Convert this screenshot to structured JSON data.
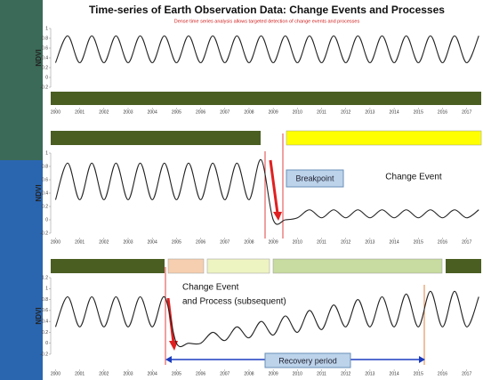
{
  "header": {
    "title": "Time-series of Earth Observation Data: Change Events and Processes",
    "subtitle": "Dense time series analysis allows targeted detection of change events and processes"
  },
  "annotations": {
    "breakpoint": "Breakpoint",
    "change_event": "Change Event",
    "change_process_1": "Change Event",
    "change_process_2": "and Process (subsequent)",
    "recovery": "Recovery period"
  },
  "chart_data": [
    {
      "type": "line",
      "y_label": "NDVI",
      "color": "#222222",
      "x": [
        2000,
        2000.5,
        2001,
        2001.5,
        2002,
        2002.5,
        2003,
        2003.5,
        2004,
        2004.5,
        2005,
        2005.5,
        2006,
        2006.5,
        2007,
        2007.5,
        2008,
        2008.5,
        2009,
        2009.5,
        2010,
        2010.5,
        2011,
        2011.5,
        2012,
        2012.5,
        2013,
        2013.5,
        2014,
        2014.5,
        2015,
        2015.5,
        2016,
        2016.5,
        2017,
        2017.5
      ],
      "values": [
        0.3,
        0.85,
        0.3,
        0.85,
        0.3,
        0.85,
        0.3,
        0.85,
        0.3,
        0.85,
        0.3,
        0.85,
        0.3,
        0.85,
        0.3,
        0.85,
        0.3,
        0.85,
        0.3,
        0.85,
        0.3,
        0.85,
        0.3,
        0.85,
        0.3,
        0.85,
        0.3,
        0.85,
        0.3,
        0.85,
        0.3,
        0.85,
        0.3,
        0.85,
        0.3,
        0.85
      ],
      "xlim": [
        1999.8,
        2017.6
      ],
      "ylim": [
        -0.2,
        1
      ],
      "xticks": [
        2000,
        2001,
        2002,
        2003,
        2004,
        2005,
        2006,
        2007,
        2008,
        2009,
        2010,
        2011,
        2012,
        2013,
        2014,
        2015,
        2016,
        2017
      ],
      "yticks": [
        -0.2,
        0,
        0.2,
        0.4,
        0.6,
        0.8,
        1
      ]
    },
    {
      "type": "line",
      "y_label": "NDVI",
      "color": "#222222",
      "x": [
        2000,
        2000.5,
        2001,
        2001.5,
        2002,
        2002.5,
        2003,
        2003.5,
        2004,
        2004.5,
        2005,
        2005.5,
        2006,
        2006.5,
        2007,
        2007.5,
        2008,
        2008.5,
        2009,
        2009.5,
        2010,
        2010.5,
        2011,
        2011.5,
        2012,
        2012.5,
        2013,
        2013.5,
        2014,
        2014.5,
        2015,
        2015.5,
        2016,
        2016.5,
        2017,
        2017.5
      ],
      "values": [
        0.3,
        0.85,
        0.3,
        0.85,
        0.3,
        0.85,
        0.3,
        0.85,
        0.3,
        0.85,
        0.3,
        0.85,
        0.3,
        0.85,
        0.3,
        0.85,
        0.3,
        0.9,
        0,
        0,
        0.03,
        0.15,
        0.03,
        0.15,
        0.03,
        0.15,
        0.03,
        0.15,
        0.03,
        0.15,
        0.03,
        0.15,
        0.03,
        0.15,
        0.03,
        0.15
      ],
      "xlim": [
        1999.8,
        2017.6
      ],
      "ylim": [
        -0.2,
        1
      ],
      "xticks": [
        2000,
        2001,
        2002,
        2003,
        2004,
        2005,
        2006,
        2007,
        2008,
        2009,
        2010,
        2011,
        2012,
        2013,
        2014,
        2015,
        2016,
        2017
      ],
      "yticks": [
        -0.2,
        0,
        0.2,
        0.4,
        0.6,
        0.8,
        1
      ]
    },
    {
      "type": "line",
      "y_label": "NDVI",
      "color": "#222222",
      "x": [
        2000,
        2000.5,
        2001,
        2001.5,
        2002,
        2002.5,
        2003,
        2003.5,
        2004,
        2004.5,
        2005,
        2005.5,
        2006,
        2006.5,
        2007,
        2007.5,
        2008,
        2008.5,
        2009,
        2009.5,
        2010,
        2010.5,
        2011,
        2011.5,
        2012,
        2012.5,
        2013,
        2013.5,
        2014,
        2014.5,
        2015,
        2015.5,
        2016,
        2016.5,
        2017,
        2017.5
      ],
      "values": [
        0.3,
        0.85,
        0.3,
        0.85,
        0.3,
        0.85,
        0.3,
        0.85,
        0.3,
        0.85,
        0,
        0,
        0,
        0.2,
        0.05,
        0.3,
        0.1,
        0.4,
        0.15,
        0.5,
        0.2,
        0.6,
        0.25,
        0.7,
        0.3,
        0.8,
        0.3,
        0.85,
        0.3,
        0.9,
        0.3,
        0.95,
        0.3,
        0.95,
        0.3,
        0.85
      ],
      "xlim": [
        1999.8,
        2017.6
      ],
      "ylim": [
        -0.2,
        1.2
      ],
      "xticks": [
        2000,
        2001,
        2002,
        2003,
        2004,
        2005,
        2006,
        2007,
        2008,
        2009,
        2010,
        2011,
        2012,
        2013,
        2014,
        2015,
        2016,
        2017
      ],
      "yticks": [
        -0.2,
        0,
        0.2,
        0.4,
        0.6,
        0.8,
        1,
        1.2
      ]
    }
  ]
}
